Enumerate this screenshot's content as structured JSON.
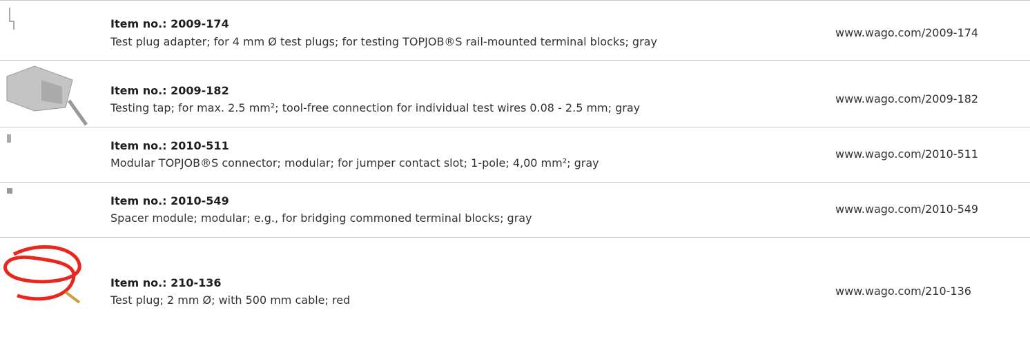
{
  "rows": [
    {
      "item": "Item no.: 2009-174",
      "description": "Test plug adapter; for 4 mm Ø test plugs; for testing TOPJOB®S rail-mounted terminal blocks; gray",
      "url": "www.wago.com/2009-174"
    },
    {
      "item": "Item no.: 2009-182",
      "description": "Testing tap; for max. 2.5 mm²; tool-free connection for individual test wires 0.08 - 2.5 mm; gray",
      "url": "www.wago.com/2009-182"
    },
    {
      "item": "Item no.: 2010-511",
      "description": "Modular TOPJOB®S connector; modular; for jumper contact slot; 1-pole; 4,00 mm²; gray",
      "url": "www.wago.com/2010-511"
    },
    {
      "item": "Item no.: 2010-549",
      "description": "Spacer module; modular; e.g., for bridging commoned terminal blocks; gray",
      "url": "www.wago.com/2010-549"
    },
    {
      "item": "Item no.: 210-136",
      "description": "Test plug; 2 mm Ø; with 500 mm cable; red",
      "url": "www.wago.com/210-136"
    }
  ]
}
